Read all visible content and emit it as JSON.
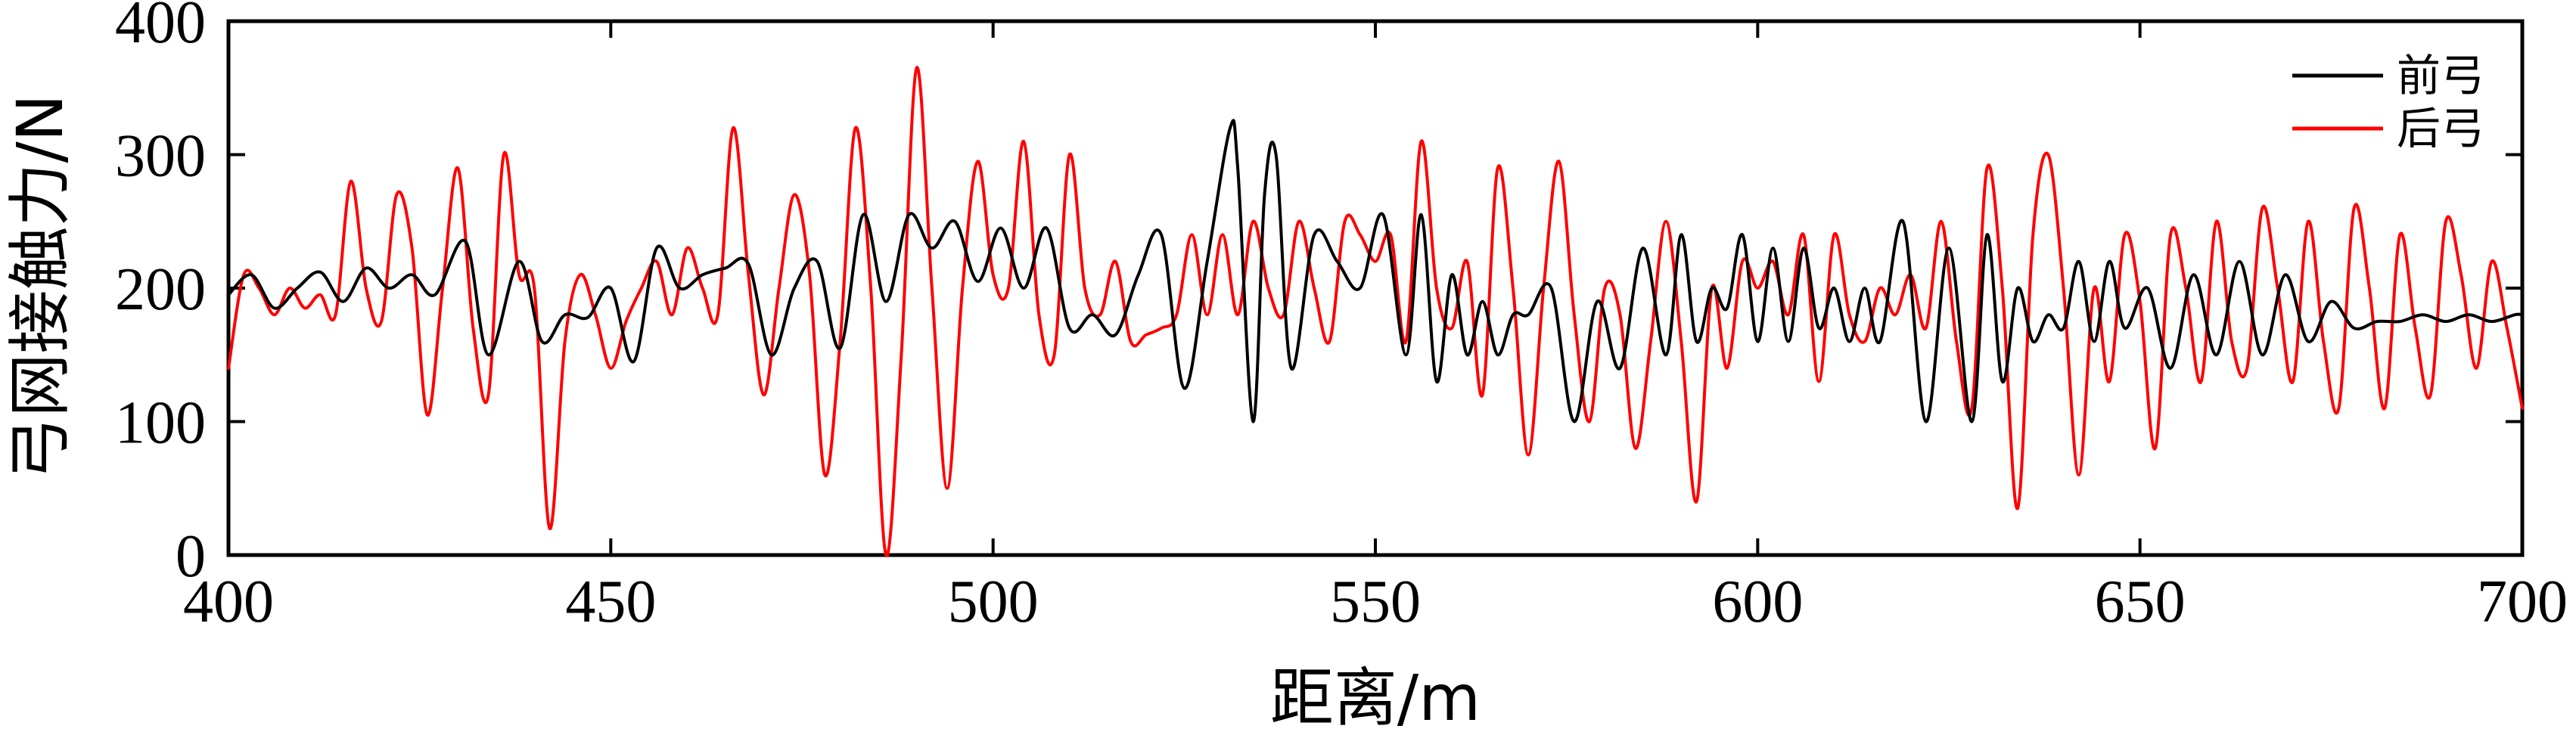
{
  "chart_data": {
    "type": "line",
    "xlabel": "距离/m",
    "ylabel": "弓网接触力/N",
    "xlim": [
      400,
      700
    ],
    "ylim": [
      0,
      400
    ],
    "xticks": [
      "400",
      "450",
      "500",
      "550",
      "600",
      "650",
      "700"
    ],
    "yticks": [
      "0",
      "100",
      "200",
      "300",
      "400"
    ],
    "legend_position": "top-right",
    "series": [
      {
        "name": "前弓",
        "color": "#000000",
        "x": [
          400,
          403,
          406,
          409,
          412,
          415,
          418,
          421,
          424,
          427,
          431,
          434,
          438,
          441,
          444,
          447,
          450,
          453,
          456,
          459,
          462,
          465,
          468,
          471,
          474,
          477,
          480,
          483,
          486,
          489,
          492,
          495,
          498,
          501,
          504,
          507,
          510,
          513,
          516,
          519,
          522,
          525,
          528,
          531,
          532,
          534,
          535.5,
          537,
          539,
          542,
          545,
          548,
          551,
          554,
          556,
          558,
          560,
          562,
          564,
          566,
          568,
          570,
          573,
          576,
          579,
          582,
          585,
          588,
          590,
          592,
          594,
          596,
          598,
          600,
          602,
          604,
          606,
          608,
          610,
          612,
          614,
          616,
          619,
          622,
          625,
          628,
          630,
          632,
          634,
          636,
          638,
          640,
          642,
          644,
          646,
          648,
          651,
          654,
          657,
          660,
          663,
          666,
          669,
          672,
          675,
          678,
          681,
          684,
          687,
          690,
          693,
          696,
          699,
          700
        ],
        "y": [
          195,
          210,
          185,
          200,
          212,
          190,
          215,
          200,
          210,
          195,
          235,
          150,
          220,
          160,
          180,
          178,
          200,
          145,
          230,
          200,
          210,
          215,
          218,
          150,
          200,
          220,
          155,
          255,
          190,
          255,
          230,
          250,
          205,
          245,
          200,
          245,
          170,
          180,
          165,
          210,
          240,
          125,
          220,
          320,
          290,
          100,
          270,
          300,
          140,
          240,
          220,
          200,
          255,
          150,
          255,
          130,
          210,
          150,
          190,
          150,
          180,
          180,
          200,
          100,
          190,
          140,
          230,
          150,
          240,
          160,
          200,
          185,
          240,
          160,
          230,
          160,
          230,
          170,
          200,
          160,
          200,
          160,
          250,
          100,
          230,
          100,
          240,
          130,
          200,
          160,
          180,
          170,
          220,
          160,
          220,
          170,
          200,
          140,
          210,
          150,
          220,
          150,
          210,
          160,
          190,
          170,
          175,
          175,
          180,
          175,
          180,
          175,
          180,
          180
        ],
        "x_note": "",
        "y_note": ""
      },
      {
        "name": "后弓",
        "color": "#ff0000",
        "x": [
          400,
          402,
          404,
          406,
          408,
          410,
          412,
          414,
          416,
          418,
          420,
          422,
          424,
          426,
          428,
          430,
          432,
          434,
          436,
          438,
          440,
          442,
          444,
          446,
          448,
          450,
          452,
          454,
          456,
          458,
          460,
          462,
          464,
          466,
          468,
          470,
          472,
          474,
          476,
          478,
          480,
          482,
          484,
          486,
          488,
          490,
          492,
          494,
          496,
          498,
          500,
          502,
          504,
          506,
          508,
          510,
          512,
          514,
          516,
          518,
          520,
          522,
          524,
          526,
          528,
          530,
          532,
          534,
          536,
          538,
          540,
          542,
          544,
          546,
          548,
          550,
          552,
          554,
          556,
          558,
          560,
          562,
          564,
          566,
          568,
          570,
          572,
          574,
          576,
          578,
          580,
          582,
          584,
          586,
          588,
          590,
          592,
          594,
          596,
          598,
          600,
          602,
          604,
          606,
          608,
          610,
          612,
          614,
          616,
          618,
          620,
          622,
          624,
          626,
          628,
          630,
          632,
          634,
          636,
          638,
          640,
          642,
          644,
          646,
          648,
          650,
          652,
          654,
          656,
          658,
          660,
          662,
          664,
          666,
          668,
          670,
          672,
          674,
          676,
          678,
          680,
          682,
          684,
          686,
          688,
          690,
          692,
          694,
          696,
          698,
          700
        ],
        "y": [
          140,
          210,
          200,
          180,
          200,
          185,
          195,
          180,
          280,
          200,
          175,
          270,
          230,
          105,
          200,
          290,
          170,
          120,
          300,
          210,
          200,
          20,
          160,
          210,
          180,
          140,
          175,
          200,
          220,
          180,
          230,
          200,
          180,
          320,
          210,
          120,
          200,
          270,
          210,
          60,
          160,
          320,
          200,
          0,
          150,
          365,
          200,
          50,
          200,
          295,
          210,
          200,
          310,
          180,
          150,
          300,
          200,
          180,
          220,
          160,
          165,
          170,
          180,
          240,
          180,
          240,
          180,
          250,
          200,
          180,
          250,
          200,
          160,
          250,
          240,
          220,
          240,
          160,
          310,
          200,
          170,
          220,
          120,
          290,
          200,
          75,
          200,
          295,
          180,
          100,
          200,
          180,
          80,
          160,
          250,
          160,
          40,
          200,
          140,
          220,
          200,
          220,
          180,
          240,
          130,
          240,
          180,
          160,
          200,
          180,
          210,
          170,
          250,
          160,
          110,
          290,
          200,
          35,
          240,
          300,
          200,
          60,
          200,
          130,
          240,
          190,
          80,
          240,
          200,
          130,
          250,
          160,
          140,
          260,
          200,
          130,
          250,
          160,
          110,
          260,
          200,
          110,
          240,
          170,
          120,
          250,
          210,
          140,
          220,
          170,
          110
        ],
        "x_note": "",
        "y_note": ""
      }
    ]
  }
}
